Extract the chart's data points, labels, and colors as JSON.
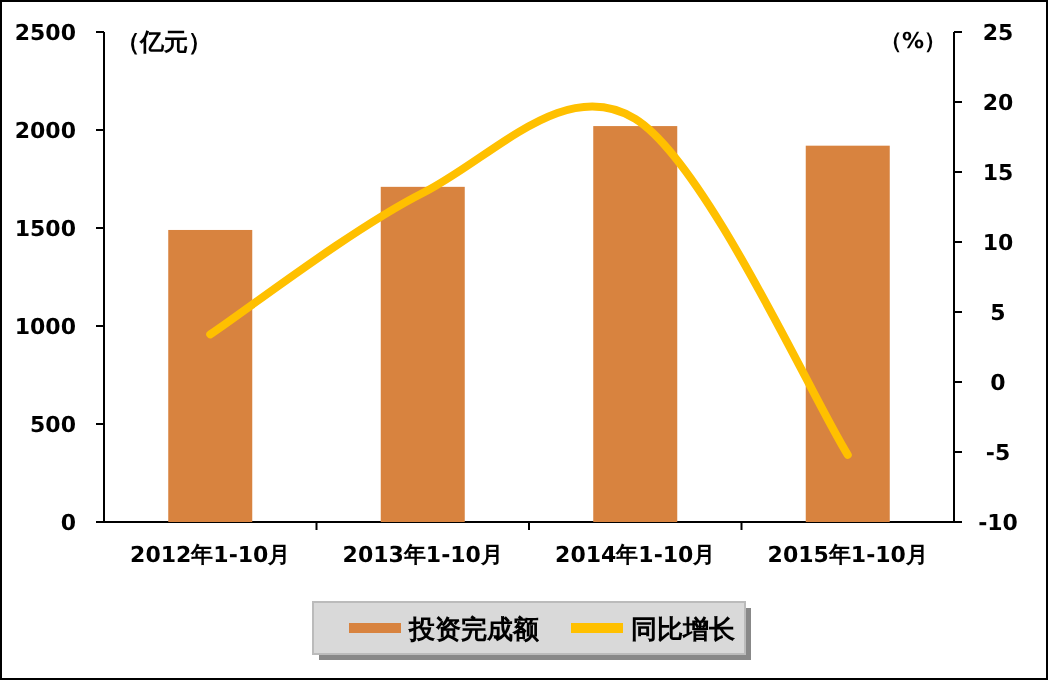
{
  "chart_data": {
    "type": "bar",
    "ylabel": "（亿元）",
    "y2label": "（%）",
    "categories": [
      "2012年1-10月",
      "2013年1-10月",
      "2014年1-10月",
      "2015年1-10月"
    ],
    "series": [
      {
        "name": "投资完成额",
        "color": "#d8833f",
        "values": [
          1490,
          1710,
          2020,
          1920
        ]
      },
      {
        "name": "同比增长",
        "type": "line",
        "axis": "y2",
        "color": "#ffc000",
        "values": [
          3.4,
          13.5,
          18.8,
          -5.2
        ]
      }
    ],
    "ylim": [
      0,
      2500
    ],
    "yticks": [
      0,
      500,
      1000,
      1500,
      2000,
      2500
    ],
    "y2lim": [
      -10,
      25
    ],
    "y2ticks": [
      -10,
      -5,
      0,
      5,
      10,
      15,
      20,
      25
    ],
    "legend": "bottom",
    "grid": false
  }
}
